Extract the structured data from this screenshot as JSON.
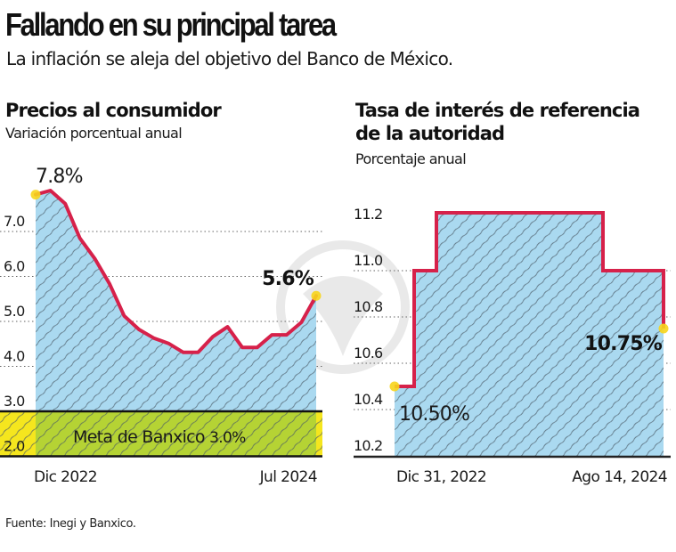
{
  "header": {
    "title": "Fallando en su principal tarea",
    "subtitle": "La inflación se aleja del objetivo del Banco de México."
  },
  "colors": {
    "line": "#d6214a",
    "area_fill": "#aad9f0",
    "hatch": "#4a5a66",
    "target_band": "#b5d334",
    "target_edge": "#f5e61e",
    "marker": "#f7d51c",
    "text": "#1a1a1a"
  },
  "footer": {
    "source": "Fuente: Inegi y Banxico."
  },
  "chart_data": [
    {
      "type": "area",
      "title": "Precios al consumidor",
      "subtitle": "Variación porcentual anual",
      "xlabel": "",
      "ylabel": "",
      "x_tick_labels": [
        "Dic 2022",
        "Jul 2024"
      ],
      "y_ticks": [
        2.0,
        3.0,
        4.0,
        5.0,
        6.0,
        7.0
      ],
      "y_tick_labels": [
        "2.0",
        "3.0",
        "4.0",
        "5.0",
        "6.0",
        "7.0"
      ],
      "ylim": [
        2.0,
        8.0
      ],
      "grid": true,
      "x": [
        "Dic 2022",
        "Ene 2023",
        "Feb 2023",
        "Mar 2023",
        "Abr 2023",
        "May 2023",
        "Jun 2023",
        "Jul 2023",
        "Ago 2023",
        "Sep 2023",
        "Oct 2023",
        "Nov 2023",
        "Dic 2023",
        "Ene 2024",
        "Feb 2024",
        "Mar 2024",
        "Abr 2024",
        "May 2024",
        "Jun 2024",
        "Jul 2024"
      ],
      "values": [
        7.82,
        7.91,
        7.62,
        6.85,
        6.4,
        5.84,
        5.12,
        4.82,
        4.63,
        4.51,
        4.31,
        4.31,
        4.66,
        4.88,
        4.42,
        4.42,
        4.7,
        4.7,
        4.98,
        5.57
      ],
      "annotations": [
        {
          "label": "7.8%",
          "point": "first"
        },
        {
          "label": "5.6%",
          "point": "last"
        }
      ],
      "target_band": {
        "label": "Meta de Banxico ",
        "value_label": "3.0%",
        "from": 2.0,
        "to": 3.0
      }
    },
    {
      "type": "area",
      "subtype": "step",
      "title_line1": "Tasa de interés de referencia",
      "title_line2": "de la autoridad",
      "subtitle": "Porcentaje anual",
      "xlabel": "",
      "ylabel": "",
      "x_tick_labels": [
        "Dic 31, 2022",
        "Ago 14, 2024"
      ],
      "y_ticks": [
        10.2,
        10.4,
        10.6,
        10.8,
        11.0,
        11.2
      ],
      "y_tick_labels": [
        "10.2",
        "10.4",
        "10.6",
        "10.8",
        "11.0",
        "11.2"
      ],
      "ylim": [
        10.2,
        11.3
      ],
      "grid": true,
      "steps": [
        {
          "label": "Dic 31, 2022",
          "value": 10.5
        },
        {
          "label": "Feb 2023",
          "value": 11.0
        },
        {
          "label": "Mar 2023",
          "value": 11.25
        },
        {
          "label": "Mar 2024",
          "value": 11.0
        },
        {
          "label": "Ago 14, 2024",
          "value": 10.75
        }
      ],
      "annotations": [
        {
          "label": "10.50%",
          "point": "first"
        },
        {
          "label": "10.75%",
          "point": "last"
        }
      ]
    }
  ]
}
